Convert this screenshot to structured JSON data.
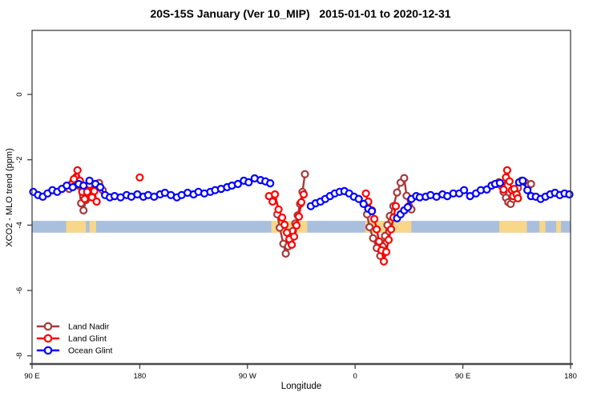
{
  "title": "20S-15S January (Ver 10_MIP)   2015-01-01 to 2020-12-31",
  "axes": {
    "x": {
      "label": "Longitude",
      "range": [
        0,
        450
      ],
      "note": "x units = degrees eastward along wrapped axis starting at 90E (0=90E, 90=180, 180=90W, 270=0, 360=90E, 450=180)",
      "ticks": [
        {
          "pos": 0,
          "label": "90 E"
        },
        {
          "pos": 90,
          "label": "180"
        },
        {
          "pos": 180,
          "label": "90 W"
        },
        {
          "pos": 270,
          "label": "0"
        },
        {
          "pos": 360,
          "label": "90 E"
        },
        {
          "pos": 450,
          "label": "180"
        }
      ]
    },
    "y": {
      "label": "XCO2 - MLO trend (ppm)",
      "range": [
        -8.25,
        1.96
      ],
      "ticks": [
        {
          "value": 0,
          "label": "0"
        },
        {
          "value": -2,
          "label": "-2"
        },
        {
          "value": -4,
          "label": "-4"
        },
        {
          "value": -6,
          "label": "-6"
        },
        {
          "value": -8,
          "label": "-8"
        }
      ]
    }
  },
  "legend": {
    "items": [
      {
        "label": "Land Nadir",
        "color": "#A43A3A"
      },
      {
        "label": "Land Glint",
        "color": "#FF0000"
      },
      {
        "label": "Ocean Glint",
        "color": "#0000FF"
      }
    ]
  },
  "chart_data": {
    "type": "line",
    "title": "20S-15S January (Ver 10_MIP)   2015-01-01 to 2020-12-31",
    "xlabel": "Longitude",
    "ylabel": "XCO2 - MLO trend (ppm)",
    "xlim": [
      0,
      450
    ],
    "ylim": [
      -8.25,
      1.96
    ],
    "grid": false,
    "legend_position": "bottom-left",
    "marker": "open-circle",
    "surface_strip": {
      "description": "ocean/land strip drawn at y = -4.05",
      "y_range": [
        -4.23,
        -3.87
      ],
      "ocean_color": "#A9BFDE",
      "land_color": "#F8D78A",
      "land_segments": [
        [
          28.5,
          45
        ],
        [
          48,
          53.5
        ],
        [
          200,
          230
        ],
        [
          278.5,
          317
        ],
        [
          390.5,
          413.5
        ],
        [
          424,
          429
        ],
        [
          438,
          442
        ]
      ]
    },
    "series": [
      {
        "name": "Land Nadir",
        "color": "#A43A3A",
        "segments": [
          [
            [
              31,
              -2.89
            ],
            [
              34,
              -2.69
            ],
            [
              37,
              -2.52
            ],
            [
              39,
              -2.79
            ],
            [
              41,
              -3.33
            ],
            [
              43,
              -3.55
            ],
            [
              45,
              -3.23
            ],
            [
              48,
              -3.05
            ],
            [
              53,
              -2.79
            ],
            [
              56,
              -2.71
            ],
            [
              59,
              -2.93
            ]
          ],
          [
            [
              205,
              -3.67
            ],
            [
              207,
              -4.08
            ],
            [
              210,
              -4.57
            ],
            [
              212,
              -4.87
            ],
            [
              214,
              -4.65
            ],
            [
              216,
              -4.42
            ],
            [
              218,
              -4.18
            ],
            [
              220,
              -3.95
            ],
            [
              222,
              -3.7
            ],
            [
              224,
              -3.35
            ],
            [
              226,
              -2.98
            ],
            [
              228,
              -2.44
            ]
          ],
          [
            [
              280,
              -3.67
            ],
            [
              282,
              -4.06
            ],
            [
              285,
              -4.4
            ],
            [
              288,
              -4.7
            ],
            [
              291,
              -4.94
            ],
            [
              293,
              -4.65
            ],
            [
              295,
              -4.33
            ],
            [
              297,
              -4.0
            ],
            [
              299,
              -3.72
            ],
            [
              302,
              -3.42
            ],
            [
              305,
              -3.0
            ],
            [
              308,
              -2.7
            ],
            [
              311,
              -2.56
            ],
            [
              313,
              -3.1
            ],
            [
              315,
              -3.42
            ],
            [
              317,
              -3.52
            ]
          ],
          [
            [
              388,
              -2.74
            ],
            [
              390,
              -2.69
            ],
            [
              392,
              -2.79
            ],
            [
              394,
              -2.98
            ],
            [
              396,
              -3.16
            ],
            [
              398,
              -3.3
            ],
            [
              400,
              -3.35
            ],
            [
              402,
              -3.2
            ],
            [
              404,
              -3.01
            ],
            [
              406,
              -2.86
            ],
            [
              409,
              -2.64
            ],
            [
              412,
              -2.69
            ],
            [
              415,
              -2.79
            ],
            [
              417,
              -2.74
            ]
          ]
        ]
      },
      {
        "name": "Land Glint",
        "color": "#FF0000",
        "segments": [
          [
            [
              33,
              -2.76
            ],
            [
              35,
              -2.59
            ],
            [
              38,
              -2.32
            ],
            [
              40,
              -2.64
            ],
            [
              42,
              -2.98
            ],
            [
              44,
              -3.2
            ],
            [
              46,
              -2.98
            ],
            [
              48,
              -2.76
            ],
            [
              50,
              -3.15
            ],
            [
              52,
              -2.96
            ],
            [
              54,
              -3.28
            ]
          ],
          [
            [
              90,
              -2.54
            ]
          ],
          [
            [
              198,
              -3.11
            ],
            [
              201,
              -3.28
            ],
            [
              203,
              -3.06
            ],
            [
              206,
              -3.52
            ],
            [
              209,
              -3.77
            ],
            [
              211,
              -3.99
            ],
            [
              213,
              -4.23
            ],
            [
              215,
              -4.43
            ],
            [
              217,
              -4.6
            ],
            [
              219,
              -4.35
            ],
            [
              221,
              -4.01
            ],
            [
              223,
              -3.74
            ],
            [
              225,
              -3.3
            ],
            [
              227,
              -3.06
            ]
          ],
          [
            [
              279,
              -3.03
            ],
            [
              281,
              -3.28
            ],
            [
              284,
              -3.55
            ],
            [
              286,
              -3.81
            ],
            [
              288,
              -4.13
            ],
            [
              290,
              -4.5
            ],
            [
              292,
              -4.77
            ],
            [
              294,
              -5.11
            ],
            [
              296,
              -4.82
            ],
            [
              298,
              -4.45
            ],
            [
              300,
              -4.13
            ],
            [
              302,
              -3.77
            ],
            [
              304,
              -3.42
            ]
          ],
          [
            [
              394,
              -2.91
            ],
            [
              396,
              -2.54
            ],
            [
              397,
              -2.32
            ],
            [
              399,
              -2.66
            ],
            [
              401,
              -2.93
            ],
            [
              402,
              -3.11
            ],
            [
              403,
              -2.89
            ],
            [
              405,
              -3.06
            ],
            [
              406,
              -3.18
            ]
          ]
        ]
      },
      {
        "name": "Ocean Glint",
        "color": "#0000FF",
        "segments": [
          [
            [
              1,
              -2.98
            ],
            [
              5,
              -3.08
            ],
            [
              9,
              -3.13
            ],
            [
              13,
              -3.03
            ],
            [
              17,
              -2.93
            ],
            [
              21,
              -2.98
            ],
            [
              25,
              -2.89
            ],
            [
              29,
              -2.79
            ],
            [
              34,
              -2.84
            ],
            [
              39,
              -2.74
            ],
            [
              43,
              -2.79
            ],
            [
              48,
              -2.64
            ],
            [
              53,
              -2.74
            ],
            [
              57,
              -2.84
            ],
            [
              61,
              -3.08
            ],
            [
              65,
              -3.15
            ],
            [
              69,
              -3.11
            ],
            [
              74,
              -3.15
            ],
            [
              79,
              -3.08
            ],
            [
              83,
              -3.13
            ],
            [
              88,
              -3.06
            ],
            [
              93,
              -3.13
            ],
            [
              97,
              -3.08
            ],
            [
              102,
              -3.13
            ],
            [
              107,
              -3.06
            ],
            [
              111,
              -3.01
            ],
            [
              116,
              -3.08
            ],
            [
              121,
              -3.15
            ],
            [
              125,
              -3.08
            ],
            [
              130,
              -3.01
            ],
            [
              135,
              -3.06
            ],
            [
              139,
              -2.98
            ],
            [
              144,
              -3.03
            ],
            [
              149,
              -2.98
            ],
            [
              153,
              -2.93
            ],
            [
              158,
              -2.89
            ],
            [
              163,
              -2.84
            ],
            [
              167,
              -2.79
            ],
            [
              172,
              -2.74
            ],
            [
              177,
              -2.64
            ],
            [
              181,
              -2.69
            ],
            [
              186,
              -2.57
            ],
            [
              191,
              -2.62
            ],
            [
              195,
              -2.66
            ],
            [
              199,
              -2.72
            ]
          ],
          [
            [
              233,
              -3.42
            ],
            [
              237,
              -3.33
            ],
            [
              241,
              -3.28
            ],
            [
              245,
              -3.2
            ],
            [
              249,
              -3.11
            ],
            [
              253,
              -3.03
            ],
            [
              257,
              -2.98
            ],
            [
              261,
              -2.96
            ],
            [
              265,
              -3.03
            ],
            [
              269,
              -3.13
            ],
            [
              273,
              -3.2
            ],
            [
              277,
              -3.35
            ],
            [
              281,
              -3.5
            ],
            [
              284,
              -3.57
            ]
          ],
          [
            [
              305,
              -3.79
            ],
            [
              308,
              -3.67
            ],
            [
              311,
              -3.55
            ],
            [
              314,
              -3.45
            ],
            [
              317,
              -3.2
            ],
            [
              321,
              -3.11
            ],
            [
              324,
              -3.15
            ],
            [
              329,
              -3.13
            ],
            [
              333,
              -3.08
            ],
            [
              338,
              -3.13
            ],
            [
              343,
              -3.06
            ],
            [
              347,
              -3.11
            ],
            [
              352,
              -3.03
            ],
            [
              357,
              -3.03
            ],
            [
              361,
              -2.93
            ],
            [
              366,
              -3.11
            ],
            [
              371,
              -3.03
            ],
            [
              375,
              -2.93
            ],
            [
              380,
              -2.91
            ],
            [
              384,
              -2.79
            ],
            [
              387,
              -2.74
            ],
            [
              391,
              -2.71
            ]
          ],
          [
            [
              407,
              -2.69
            ],
            [
              410,
              -2.64
            ],
            [
              414,
              -2.93
            ],
            [
              417,
              -3.11
            ],
            [
              421,
              -3.13
            ],
            [
              425,
              -3.2
            ],
            [
              429,
              -3.13
            ],
            [
              433,
              -3.06
            ],
            [
              437,
              -3.01
            ],
            [
              441,
              -3.08
            ],
            [
              445,
              -3.03
            ],
            [
              449,
              -3.06
            ]
          ]
        ]
      }
    ]
  },
  "style": {
    "plot_border_color": "#333333",
    "axis_line_color": "#4a4a4a",
    "tick_text_color": "#000000",
    "marker_fill": "#ffffff"
  }
}
